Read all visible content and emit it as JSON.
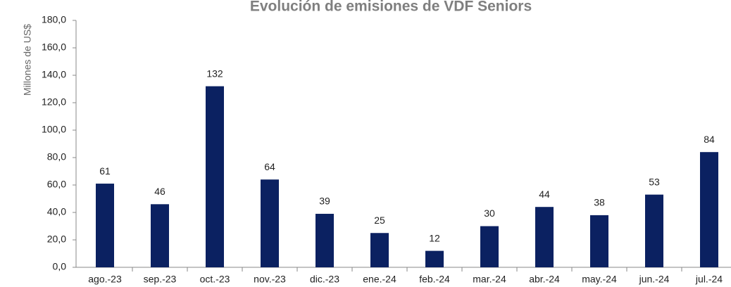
{
  "chart_data": {
    "type": "bar",
    "title": "Evolución de emisiones de VDF Seniors",
    "y_label": "Millones de US$",
    "categories": [
      "ago.-23",
      "sep.-23",
      "oct.-23",
      "nov.-23",
      "dic.-23",
      "ene.-24",
      "feb.-24",
      "mar.-24",
      "abr.-24",
      "may.-24",
      "jun.-24",
      "jul.-24"
    ],
    "values": [
      61,
      46,
      132,
      64,
      39,
      25,
      12,
      30,
      44,
      38,
      53,
      84
    ],
    "color": "#0b2161",
    "ylim": [
      0,
      180
    ],
    "yticks": [
      {
        "value": 0,
        "label": "0,0"
      },
      {
        "value": 20,
        "label": "20,0"
      },
      {
        "value": 40,
        "label": "40,0"
      },
      {
        "value": 60,
        "label": "60,0"
      },
      {
        "value": 80,
        "label": "80,0"
      },
      {
        "value": 100,
        "label": "100,0"
      },
      {
        "value": 120,
        "label": "120,0"
      },
      {
        "value": 140,
        "label": "140,0"
      },
      {
        "value": 160,
        "label": "160,0"
      },
      {
        "value": 180,
        "label": "180,0"
      }
    ],
    "grid": false
  }
}
